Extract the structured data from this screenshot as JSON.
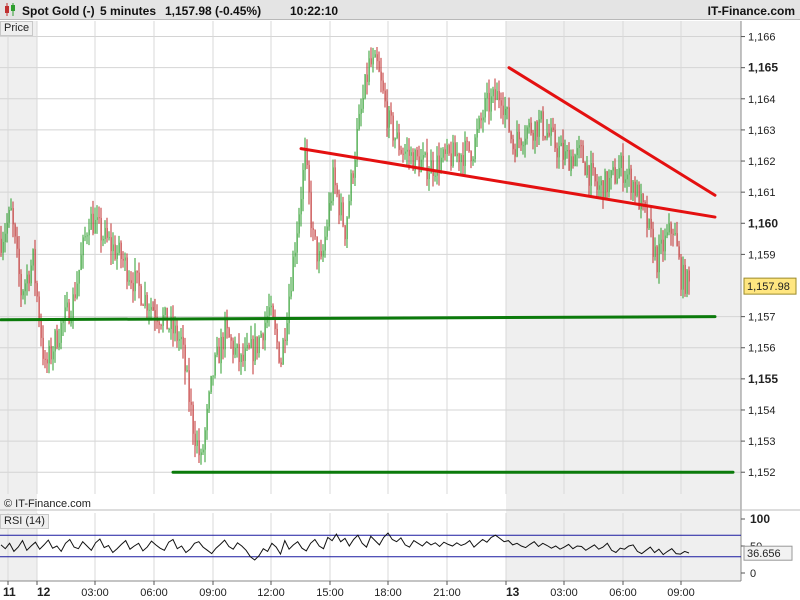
{
  "header": {
    "instrument": "Spot Gold (-)",
    "timeframe": "5 minutes",
    "last_change": "1,157.98 (-0.45%)",
    "time": "10:22:10",
    "brand": "IT-Finance.com"
  },
  "price_label": "Price",
  "rsi_label": "RSI (14)",
  "copyright": "© IT-Finance.com",
  "colors": {
    "up": "#2e9e2e",
    "down": "#c03030",
    "support": "#0b7a0b",
    "resistance": "#e41010",
    "rsi_band": "#1a1aa0"
  },
  "chart_data": {
    "type": "candlestick",
    "price_axis": {
      "ticks": [
        {
          "v": 1166,
          "label": "1,166",
          "bold": false
        },
        {
          "v": 1165,
          "label": "1,165",
          "bold": true
        },
        {
          "v": 1164,
          "label": "1,164",
          "bold": false
        },
        {
          "v": 1163,
          "label": "1,163",
          "bold": false
        },
        {
          "v": 1162,
          "label": "1,162",
          "bold": false
        },
        {
          "v": 1161,
          "label": "1,161",
          "bold": false
        },
        {
          "v": 1160,
          "label": "1,160",
          "bold": true
        },
        {
          "v": 1159,
          "label": "1,159",
          "bold": false
        },
        {
          "v": 1157,
          "label": "1,157",
          "bold": false
        },
        {
          "v": 1156,
          "label": "1,156",
          "bold": false
        },
        {
          "v": 1155,
          "label": "1,155",
          "bold": true
        },
        {
          "v": 1154,
          "label": "1,154",
          "bold": false
        },
        {
          "v": 1153,
          "label": "1,153",
          "bold": false
        },
        {
          "v": 1152,
          "label": "1,152",
          "bold": false
        }
      ],
      "ylim": [
        1151.3,
        1166.5
      ],
      "last_price": 1157.98,
      "last_price_label": "1,157.98"
    },
    "time_axis": [
      {
        "t": "11",
        "bold": true
      },
      {
        "t": "12",
        "bold": true
      },
      {
        "t": "03:00",
        "bold": false
      },
      {
        "t": "06:00",
        "bold": false
      },
      {
        "t": "09:00",
        "bold": false
      },
      {
        "t": "12:00",
        "bold": false
      },
      {
        "t": "15:00",
        "bold": false
      },
      {
        "t": "18:00",
        "bold": false
      },
      {
        "t": "21:00",
        "bold": false
      },
      {
        "t": "13",
        "bold": true
      },
      {
        "t": "03:00",
        "bold": false
      },
      {
        "t": "06:00",
        "bold": false
      },
      {
        "t": "09:00",
        "bold": false
      }
    ],
    "anchors": [
      [
        0,
        1159.5
      ],
      [
        5,
        1160.3
      ],
      [
        10,
        1157.8
      ],
      [
        16,
        1158.8
      ],
      [
        22,
        1155.3
      ],
      [
        28,
        1156.4
      ],
      [
        36,
        1157.5
      ],
      [
        44,
        1160.2
      ],
      [
        52,
        1159.5
      ],
      [
        60,
        1158.9
      ],
      [
        66,
        1158.2
      ],
      [
        72,
        1157.6
      ],
      [
        80,
        1157.0
      ],
      [
        90,
        1156.2
      ],
      [
        96,
        1153.5
      ],
      [
        100,
        1152.3
      ],
      [
        106,
        1155.2
      ],
      [
        112,
        1156.5
      ],
      [
        120,
        1155.5
      ],
      [
        128,
        1156.1
      ],
      [
        134,
        1157.2
      ],
      [
        140,
        1155.6
      ],
      [
        146,
        1158.8
      ],
      [
        152,
        1162.1
      ],
      [
        156,
        1159.5
      ],
      [
        160,
        1158.6
      ],
      [
        166,
        1161.4
      ],
      [
        172,
        1159.8
      ],
      [
        178,
        1162.8
      ],
      [
        184,
        1165.1
      ],
      [
        188,
        1165.0
      ],
      [
        194,
        1163.2
      ],
      [
        200,
        1162.4
      ],
      [
        208,
        1162.0
      ],
      [
        214,
        1161.8
      ],
      [
        220,
        1162.0
      ],
      [
        228,
        1162.2
      ],
      [
        236,
        1162.4
      ],
      [
        242,
        1163.7
      ],
      [
        250,
        1164.2
      ],
      [
        256,
        1162.5
      ],
      [
        262,
        1163.0
      ],
      [
        270,
        1163.2
      ],
      [
        276,
        1162.6
      ],
      [
        282,
        1162.1
      ],
      [
        290,
        1162.2
      ],
      [
        298,
        1161.1
      ],
      [
        304,
        1161.3
      ],
      [
        310,
        1161.8
      ],
      [
        316,
        1161.3
      ],
      [
        322,
        1160.2
      ],
      [
        328,
        1158.8
      ],
      [
        332,
        1159.4
      ],
      [
        336,
        1159.9
      ],
      [
        340,
        1158.3
      ],
      [
        344,
        1158.0
      ]
    ],
    "lines": [
      {
        "name": "resistance-upper",
        "color": "#e41010",
        "x": [
          254,
          357
        ],
        "y": [
          1165.0,
          1160.9
        ]
      },
      {
        "name": "resistance-lower",
        "color": "#e41010",
        "x": [
          150,
          357
        ],
        "y": [
          1162.4,
          1160.2
        ]
      },
      {
        "name": "support-upper",
        "color": "#0b7a0b",
        "x": [
          0,
          357
        ],
        "y": [
          1156.9,
          1157.0
        ]
      },
      {
        "name": "support-lower",
        "color": "#0b7a0b",
        "x": [
          86,
          366
        ],
        "y": [
          1152.0,
          1152.0
        ]
      }
    ],
    "rsi": {
      "period": 14,
      "last": 36.656,
      "last_label": "36.656",
      "ticks": [
        {
          "v": 100,
          "label": "100"
        },
        {
          "v": 50,
          "label": "50"
        },
        {
          "v": 0,
          "label": "0"
        }
      ],
      "bands": [
        70,
        30
      ],
      "values": [
        52,
        45,
        55,
        40,
        48,
        60,
        42,
        50,
        57,
        44,
        52,
        61,
        46,
        50,
        40,
        55,
        62,
        48,
        45,
        58,
        50,
        42,
        56,
        63,
        47,
        51,
        38,
        45,
        53,
        60,
        44,
        50,
        55,
        41,
        48,
        59,
        52,
        46,
        42,
        57,
        62,
        45,
        50,
        38,
        44,
        55,
        58,
        48,
        42,
        36,
        46,
        53,
        61,
        49,
        44,
        56,
        50,
        42,
        30,
        24,
        32,
        45,
        40,
        55,
        48,
        35,
        60,
        44,
        52,
        58,
        46,
        41,
        55,
        62,
        50,
        45,
        66,
        60,
        72,
        58,
        64,
        50,
        62,
        70,
        55,
        48,
        68,
        60,
        52,
        66,
        74,
        62,
        58,
        65,
        52,
        48,
        60,
        55,
        50,
        58,
        52,
        56,
        49,
        57,
        53,
        50,
        56,
        51,
        54,
        60,
        48,
        55,
        62,
        57,
        66,
        70,
        64,
        58,
        60,
        52,
        55,
        50,
        47,
        53,
        58,
        49,
        55,
        51,
        46,
        50,
        44,
        48,
        53,
        45,
        50,
        49,
        42,
        47,
        52,
        44,
        48,
        55,
        42,
        38,
        46,
        44,
        50,
        52,
        40,
        36,
        42,
        48,
        38,
        44,
        34,
        40,
        45,
        36,
        35,
        40,
        37
      ]
    }
  }
}
